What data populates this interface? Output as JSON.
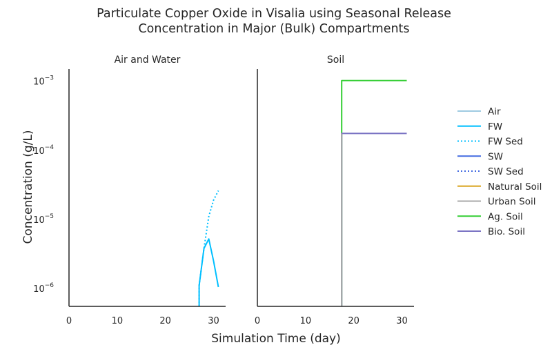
{
  "chart_data": {
    "type": "line",
    "title_line1": "Particulate Copper Oxide in Visalia using Seasonal Release",
    "title_line2": "Concentration in Major (Bulk) Compartments",
    "xlabel": "Simulation Time (day)",
    "ylabel": "Concentration (g/L)",
    "yscale": "log",
    "ylim": [
      5.5e-07,
      0.0015
    ],
    "y_ticks": [
      {
        "base": "10",
        "exp": "−6",
        "value": 1e-06
      },
      {
        "base": "10",
        "exp": "−5",
        "value": 1e-05
      },
      {
        "base": "10",
        "exp": "−4",
        "value": 0.0001
      },
      {
        "base": "10",
        "exp": "−3",
        "value": 0.001
      }
    ],
    "grid": false,
    "legend_position": "right",
    "legend": [
      {
        "name": "Air",
        "color": "#9ecae1",
        "dash": "solid"
      },
      {
        "name": "FW",
        "color": "#00bfff",
        "dash": "solid"
      },
      {
        "name": "FW Sed",
        "color": "#00bfff",
        "dash": "dotted"
      },
      {
        "name": "SW",
        "color": "#4169e1",
        "dash": "solid"
      },
      {
        "name": "SW Sed",
        "color": "#4169e1",
        "dash": "dotted"
      },
      {
        "name": "Natural Soil",
        "color": "#daa520",
        "dash": "solid"
      },
      {
        "name": "Urban Soil",
        "color": "#a9a9a9",
        "dash": "solid"
      },
      {
        "name": "Ag. Soil",
        "color": "#32cd32",
        "dash": "solid"
      },
      {
        "name": "Bio. Soil",
        "color": "#7b74c4",
        "dash": "solid"
      }
    ],
    "panels": [
      {
        "title": "Air and Water",
        "xlim": [
          0,
          32.5
        ],
        "x_ticks": [
          0,
          10,
          20,
          30
        ],
        "series": [
          {
            "legend_index": 2,
            "x": [
              27,
              27,
              28,
              29,
              30,
              31
            ],
            "y": [
              5.5e-07,
              1.1e-06,
              3.8e-06,
              1.1e-05,
              1.9e-05,
              2.6e-05
            ]
          },
          {
            "legend_index": 1,
            "x": [
              27,
              27,
              28,
              29,
              30,
              31
            ],
            "y": [
              5.5e-07,
              1.1e-06,
              3.8e-06,
              5.2e-06,
              2.5e-06,
              1.05e-06
            ]
          }
        ]
      },
      {
        "title": "Soil",
        "xlim": [
          0,
          32.5
        ],
        "x_ticks": [
          0,
          10,
          20,
          30
        ],
        "series": [
          {
            "legend_index": 7,
            "x": [
              17.5,
              17.5,
              31
            ],
            "y": [
              5.5e-07,
              0.00102,
              0.00102
            ]
          },
          {
            "legend_index": 8,
            "x": [
              17.5,
              17.5,
              31
            ],
            "y": [
              5.5e-07,
              0.000175,
              0.000175
            ]
          },
          {
            "legend_index": 6,
            "x": [
              17.5,
              17.5
            ],
            "y": [
              5.5e-07,
              0.000175
            ]
          }
        ]
      }
    ]
  }
}
